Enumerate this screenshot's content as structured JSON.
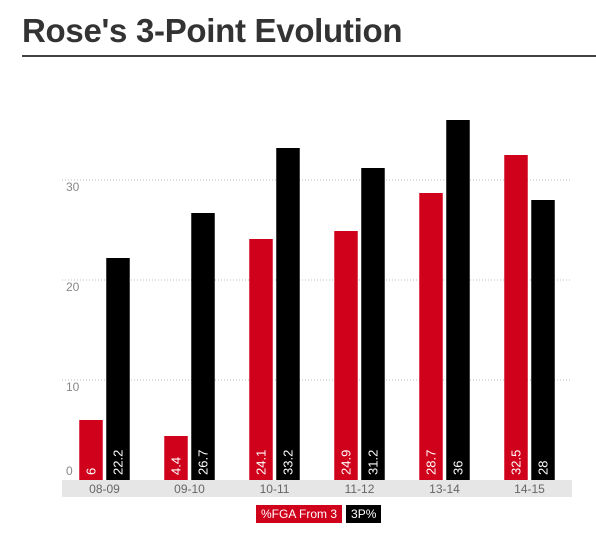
{
  "title": "Rose's 3-Point Evolution",
  "chart_data": {
    "type": "bar",
    "categories": [
      "08-09",
      "09-10",
      "10-11",
      "11-12",
      "13-14",
      "14-15"
    ],
    "series": [
      {
        "name": "%FGA From 3",
        "color": "#d0021b",
        "values": [
          6,
          4.4,
          24.1,
          24.9,
          28.7,
          32.5
        ]
      },
      {
        "name": "3P%",
        "color": "#000000",
        "values": [
          22.2,
          26.7,
          33.2,
          31.2,
          36,
          28
        ]
      }
    ],
    "y_ticks": [
      "0",
      "10",
      "20",
      "30"
    ],
    "ylim": [
      0,
      40
    ],
    "grid": true,
    "legend_position": "bottom-center"
  }
}
